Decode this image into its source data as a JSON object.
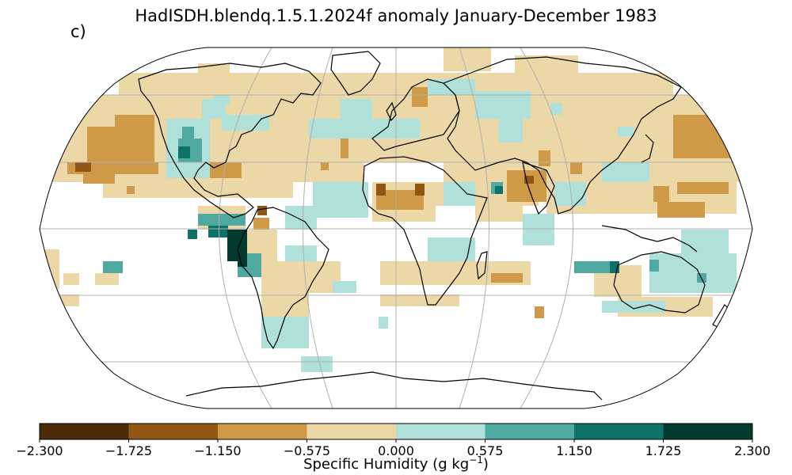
{
  "title": "HadISDH.blendq.1.5.1.2024f anomaly January-December 1983",
  "panel_label": "c)",
  "colorbar": {
    "label_main": "Specific Humidity (g kg",
    "label_exp": "−1",
    "label_close": ")",
    "ticks": [
      "−2.300",
      "−1.725",
      "−1.150",
      "−0.575",
      "0.000",
      "0.575",
      "1.150",
      "1.725",
      "2.300"
    ],
    "colors": [
      "#4a2d08",
      "#8f5614",
      "#cf9a48",
      "#ebd8a6",
      "#afe0d9",
      "#4fa99f",
      "#0e7268",
      "#023a30"
    ]
  },
  "colors": {
    "land_outline": "#000000",
    "graticule": "#b0b0b0",
    "ocean": "#ffffff"
  }
}
